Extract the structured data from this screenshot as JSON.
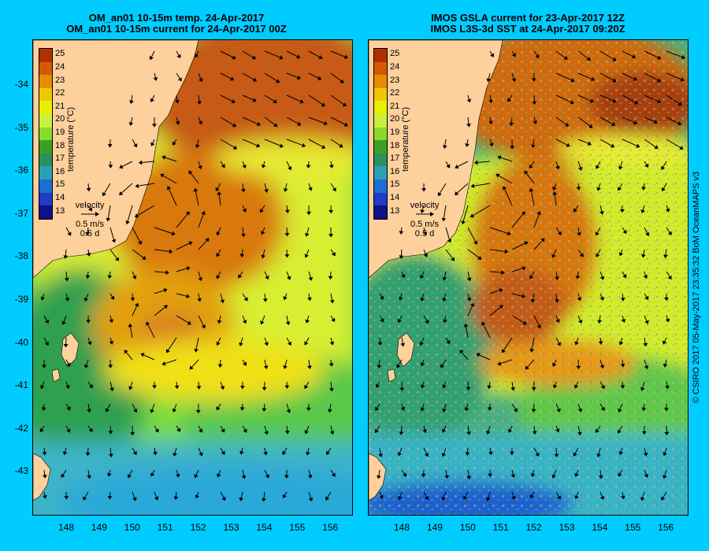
{
  "left_panel": {
    "title_line1": "OM_an01 10-15m temp. 24-Apr-2017",
    "title_line2": "OM_an01 10-15m current for 24-Apr-2017 00Z"
  },
  "right_panel": {
    "title_line1": "IMOS GSLA current for 23-Apr-2017 12Z",
    "title_line2": "IMOS L3S-3d SST at 24-Apr-2017 09:20Z"
  },
  "colorbar": {
    "label": "temperature (°C)",
    "ticks": [
      "25",
      "24",
      "23",
      "22",
      "21",
      "20",
      "19",
      "18",
      "17",
      "16",
      "15",
      "14",
      "13"
    ],
    "colors": [
      "#b03000",
      "#d25a00",
      "#e68c00",
      "#f0c800",
      "#e8f000",
      "#c8f040",
      "#88dc28",
      "#3ca028",
      "#2a9060",
      "#2aa0b4",
      "#1e6ed2",
      "#1e3cc8",
      "#101088"
    ]
  },
  "velocity_key": {
    "title": "velocity",
    "speed": "0.5 m/s",
    "time": "0.5 d"
  },
  "axes": {
    "lat_ticks": [
      "-34",
      "-35",
      "-36",
      "-37",
      "-38",
      "-39",
      "-40",
      "-41",
      "-42",
      "-43"
    ],
    "lon_ticks": [
      "148",
      "149",
      "150",
      "151",
      "152",
      "153",
      "154",
      "155",
      "156"
    ]
  },
  "credit": "© CSIRO 2017   05-May-2017 23:35:32 BoM OceanMAPS v3",
  "colors": {
    "background": "#00ccff",
    "land": "#fdd09c",
    "no_data": "#c8b496"
  }
}
